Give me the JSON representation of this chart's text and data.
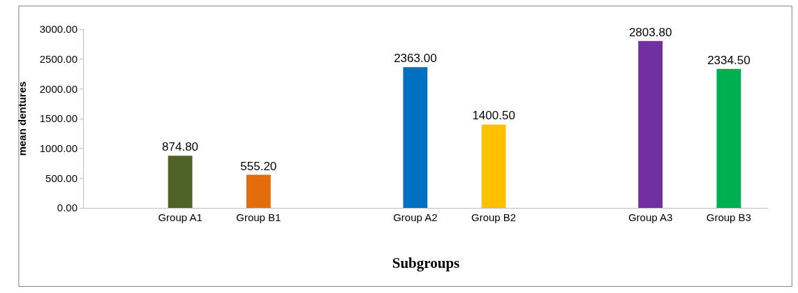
{
  "chart_data": {
    "type": "bar",
    "xlabel": "Subgroups",
    "ylabel": "mean dentures",
    "categories": [
      "Group A1",
      "Group B1",
      null,
      "Group A2",
      "Group B2",
      null,
      "Group A3",
      "Group B3"
    ],
    "values": [
      874.8,
      555.2,
      null,
      2363.0,
      1400.5,
      null,
      2803.8,
      2334.5
    ],
    "colors": [
      "#4f6228",
      "#e46c0a",
      "#ffffff",
      "#0070c0",
      "#ffc000",
      "#ffffff",
      "#7030a0",
      "#00b050"
    ],
    "value_labels": [
      "874.80",
      "555.20",
      null,
      "2363.00",
      "1400.50",
      null,
      "2803.80",
      "2334.50"
    ],
    "ylim": [
      0,
      3000
    ],
    "yticks": [
      {
        "value": 0,
        "label": "0.00"
      },
      {
        "value": 500,
        "label": "500.00"
      },
      {
        "value": 1000,
        "label": "1000.00"
      },
      {
        "value": 1500,
        "label": "1500.00"
      },
      {
        "value": 2000,
        "label": "2000.00"
      },
      {
        "value": 2500,
        "label": "2500.00"
      },
      {
        "value": 3000,
        "label": "3000.00"
      }
    ],
    "legend": false
  }
}
